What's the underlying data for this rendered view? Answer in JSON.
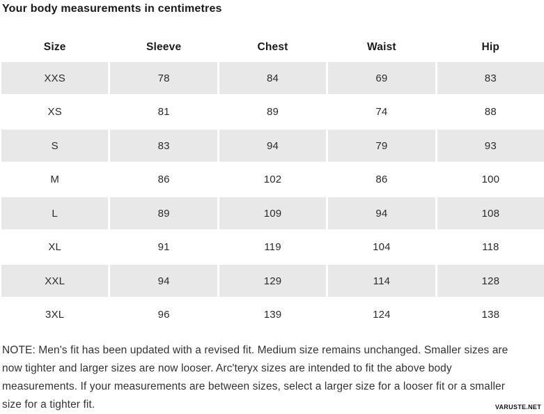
{
  "title": "Your body measurements in centimetres",
  "table": {
    "columns": [
      "Size",
      "Sleeve",
      "Chest",
      "Waist",
      "Hip"
    ],
    "rows": [
      [
        "XXS",
        78,
        84,
        69,
        83
      ],
      [
        "XS",
        81,
        89,
        74,
        88
      ],
      [
        "S",
        83,
        94,
        79,
        93
      ],
      [
        "M",
        86,
        102,
        86,
        100
      ],
      [
        "L",
        89,
        109,
        94,
        108
      ],
      [
        "XL",
        91,
        119,
        104,
        118
      ],
      [
        "XXL",
        94,
        129,
        114,
        128
      ],
      [
        "3XL",
        96,
        139,
        124,
        138
      ]
    ]
  },
  "note": {
    "lines": [
      "NOTE: Men's fit has been updated with a revised fit. Medium size remains unchanged. Smaller sizes are",
      "now tighter and larger sizes are now looser. Arc'teryx sizes are intended to fit the above body",
      "measurements. If your measurements are between sizes, select a larger size for a looser fit or a smaller",
      "size for a tighter fit."
    ]
  },
  "watermark": "VARUSTE.NET",
  "colors": {
    "row_shaded": "#e8e8e8",
    "heading_text": "#1a1a1a",
    "body_text": "#2b2b2b",
    "note_text": "#333333"
  }
}
